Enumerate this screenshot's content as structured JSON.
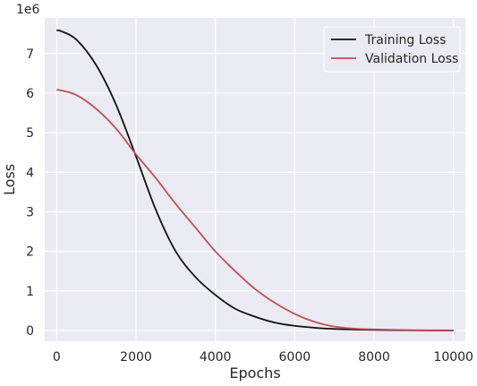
{
  "chart_data": {
    "type": "line",
    "title": "",
    "xlabel": "Epochs",
    "ylabel": "Loss",
    "y_multiplier_label": "1e6",
    "xlim": [
      -300,
      10300
    ],
    "ylim": [
      -0.27,
      7.9
    ],
    "xticks": [
      0,
      2000,
      4000,
      6000,
      8000,
      10000
    ],
    "yticks": [
      0,
      1,
      2,
      3,
      4,
      5,
      6,
      7
    ],
    "grid": true,
    "legend_placement": "top-right",
    "series": [
      {
        "name": "Training Loss",
        "color": "#111111",
        "x": [
          0,
          100,
          500,
          1000,
          1500,
          2000,
          2500,
          3000,
          3500,
          4000,
          4500,
          5000,
          5500,
          6000,
          6500,
          7000,
          7500,
          8000,
          9000,
          10000
        ],
        "y": [
          7.58,
          7.57,
          7.35,
          6.7,
          5.7,
          4.4,
          3.05,
          2.0,
          1.35,
          0.9,
          0.55,
          0.35,
          0.2,
          0.12,
          0.07,
          0.04,
          0.025,
          0.015,
          0.005,
          0.0
        ]
      },
      {
        "name": "Validation Loss",
        "color": "#c44e52",
        "x": [
          0,
          100,
          500,
          1000,
          1500,
          2000,
          2500,
          3000,
          3500,
          4000,
          4500,
          5000,
          5500,
          6000,
          6500,
          7000,
          7500,
          8000,
          9000,
          10000
        ],
        "y": [
          6.08,
          6.07,
          5.95,
          5.6,
          5.1,
          4.45,
          3.85,
          3.2,
          2.6,
          2.0,
          1.5,
          1.05,
          0.7,
          0.42,
          0.22,
          0.1,
          0.05,
          0.03,
          0.01,
          0.005
        ]
      }
    ]
  }
}
